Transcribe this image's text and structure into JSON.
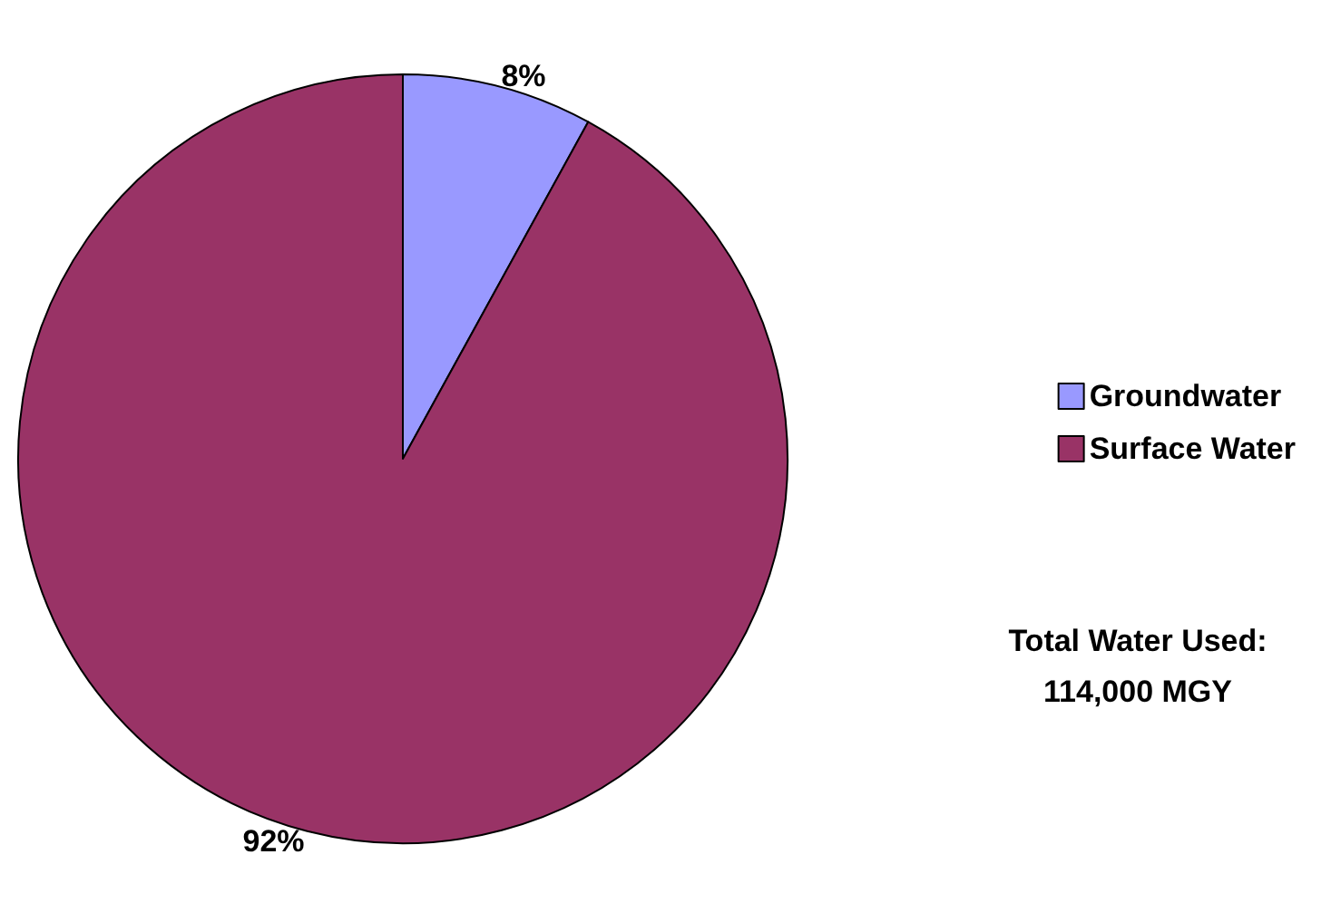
{
  "chart_data": {
    "type": "pie",
    "categories": [
      "Groundwater",
      "Surface Water"
    ],
    "values": [
      8,
      92
    ],
    "colors": [
      "#9999ff",
      "#993366"
    ],
    "value_labels": [
      "8%",
      "92%"
    ],
    "legend": "right",
    "annotations": [
      "Total Water Used:",
      "114,000 MGY"
    ]
  }
}
